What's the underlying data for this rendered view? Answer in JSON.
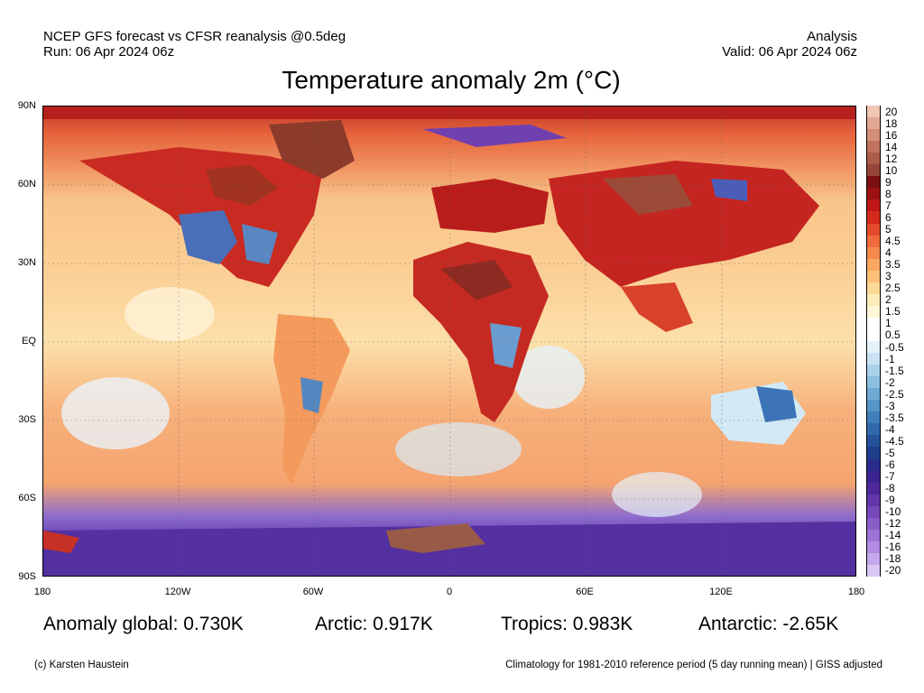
{
  "header": {
    "line1_left": "NCEP GFS forecast vs CFSR reanalysis @0.5deg",
    "line2_left": "Run: 06 Apr 2024 06z",
    "line1_right": "Analysis",
    "line2_right": "Valid: 06 Apr 2024 06z"
  },
  "title": "Temperature anomaly 2m (°C)",
  "lat_labels": [
    "90N",
    "60N",
    "30N",
    "EQ",
    "30S",
    "60S",
    "90S"
  ],
  "lon_labels": [
    "180",
    "120W",
    "60W",
    "0",
    "60E",
    "120E",
    "180"
  ],
  "colorbar": {
    "labels": [
      "20",
      "18",
      "16",
      "14",
      "12",
      "10",
      "9",
      "8",
      "7",
      "6",
      "5",
      "4.5",
      "4",
      "3.5",
      "3",
      "2.5",
      "2",
      "1.5",
      "1",
      "0.5",
      "-0.5",
      "-1",
      "-1.5",
      "-2",
      "-2.5",
      "-3",
      "-3.5",
      "-4",
      "-4.5",
      "-5",
      "-6",
      "-7",
      "-8",
      "-9",
      "-10",
      "-12",
      "-14",
      "-16",
      "-18",
      "-20"
    ],
    "colors": [
      "#f2c6b4",
      "#e3a895",
      "#d48e78",
      "#c1735d",
      "#ab5c48",
      "#934638",
      "#7a0f0f",
      "#9c1212",
      "#bd1717",
      "#d42a1c",
      "#e34a2c",
      "#ef6a3c",
      "#f58a4c",
      "#fba760",
      "#fdc278",
      "#fed996",
      "#feecb8",
      "#fff6d8",
      "#ffffff",
      "#ffffff",
      "#e6f2fa",
      "#c9e3f3",
      "#a9d1ea",
      "#8abfe0",
      "#6eaad4",
      "#5595c7",
      "#3f7fb9",
      "#2f69aa",
      "#25529a",
      "#1e3d8a",
      "#2a2c8c",
      "#3b248f",
      "#4e2899",
      "#6236a8",
      "#7748b8",
      "#8a5cc8",
      "#9d73d6",
      "#b18ce2",
      "#c4a7ec",
      "#d9c6f4"
    ]
  },
  "stats": {
    "global": "Anomaly global: 0.730K",
    "arctic": "Arctic: 0.917K",
    "tropics": "Tropics: 0.983K",
    "antarctic": "Antarctic: -2.65K"
  },
  "footer": {
    "left": "(c) Karsten Haustein",
    "right": "Climatology for 1981-2010 reference period (5 day running mean) | GISS adjusted"
  }
}
